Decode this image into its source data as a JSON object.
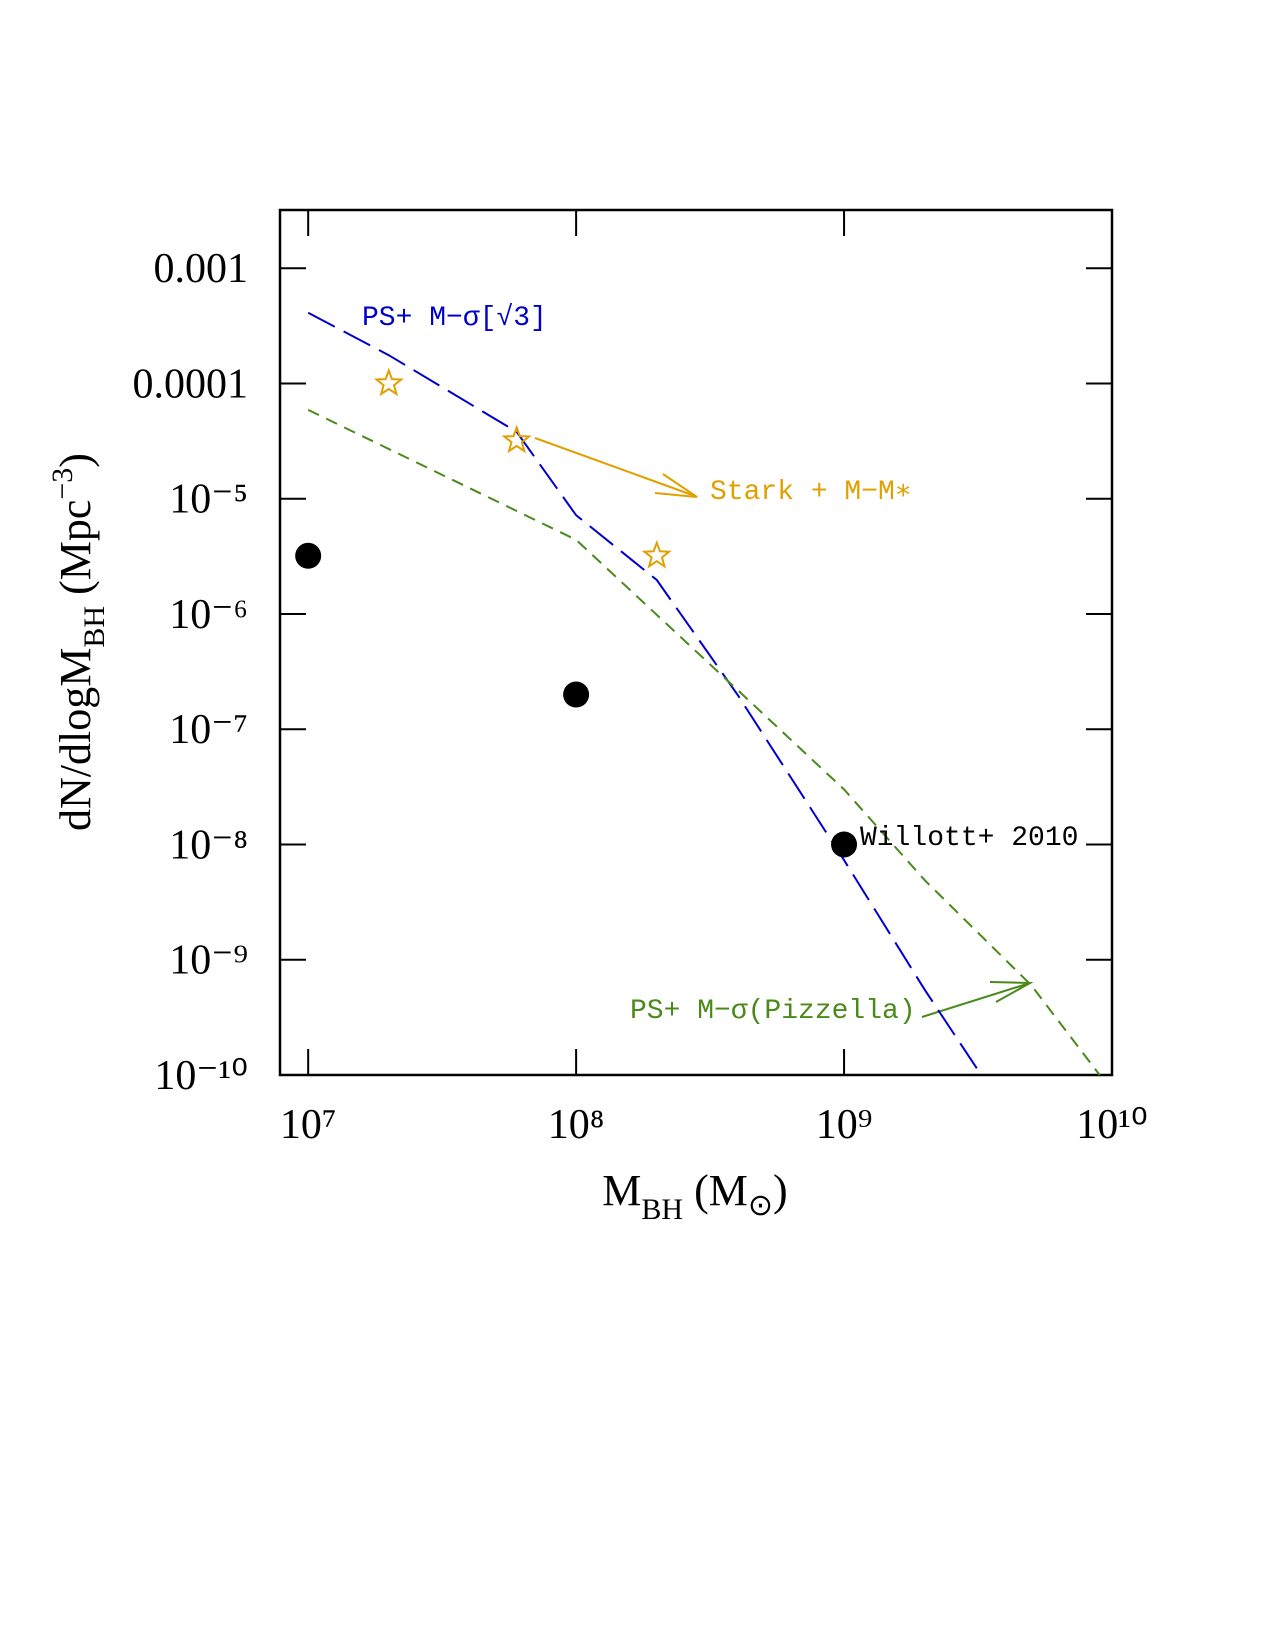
{
  "chart_data": {
    "type": "scatter",
    "log_x": true,
    "log_y": true,
    "xlim": [
      7850000.0,
      10000000000.0
    ],
    "ylim": [
      1e-10,
      0.0032
    ],
    "xticks": [
      {
        "value": 10000000.0,
        "label": "10⁷"
      },
      {
        "value": 100000000.0,
        "label": "10⁸"
      },
      {
        "value": 1000000000.0,
        "label": "10⁹"
      },
      {
        "value": 10000000000.0,
        "label": "10¹⁰"
      }
    ],
    "yticks": [
      {
        "value": 1e-10,
        "label": "10⁻¹⁰"
      },
      {
        "value": 1e-09,
        "label": "10⁻⁹"
      },
      {
        "value": 1e-08,
        "label": "10⁻⁸"
      },
      {
        "value": 1e-07,
        "label": "10⁻⁷"
      },
      {
        "value": 1e-06,
        "label": "10⁻⁶"
      },
      {
        "value": 1e-05,
        "label": "10⁻⁵"
      },
      0.0001,
      0.001
    ],
    "x_label": [
      "M",
      "BH",
      " (M",
      "⊙",
      ")"
    ],
    "y_label": [
      "dN/dlogM",
      "BH",
      "  (Mpc",
      "−3",
      ")"
    ],
    "series": [
      {
        "name": "PS+ M−σ[√3]",
        "color": "#0000cc",
        "kind": "long-dash",
        "x": [
          10000000.0,
          20000000.0,
          60000000.0,
          100000000.0,
          200000000.0,
          400000000.0,
          1000000000.0,
          2000000000.0,
          3250000000.0
        ],
        "values": [
          0.00041,
          0.000176,
          3.8e-05,
          7.2e-06,
          1.97e-06,
          2e-07,
          7.3e-09,
          5.5e-10,
          1e-10
        ]
      },
      {
        "name": "PS+ M−σ(Pizzella)",
        "color": "#4a8a1a",
        "kind": "short-dash",
        "x": [
          10000000.0,
          100000000.0,
          400000000.0,
          1000000000.0,
          2000000000.0,
          5000000000.0,
          9000000000.0
        ],
        "values": [
          5.9e-05,
          4.4e-06,
          2.2e-07,
          3e-08,
          4.9e-09,
          6e-10,
          1e-10
        ]
      },
      {
        "name": "Stark + M−M∗",
        "color": "#e0a000",
        "kind": "star",
        "x": [
          20000000.0,
          60000000.0,
          200000000.0
        ],
        "values": [
          0.0001,
          3.2e-05,
          3.2e-06
        ]
      },
      {
        "name": "Willott+ 2010",
        "color": "#000000",
        "kind": "dot",
        "x": [
          10000000.0,
          100000000.0,
          1000000000.0
        ],
        "values": [
          3.2e-06,
          2e-07,
          1e-08
        ]
      }
    ]
  }
}
